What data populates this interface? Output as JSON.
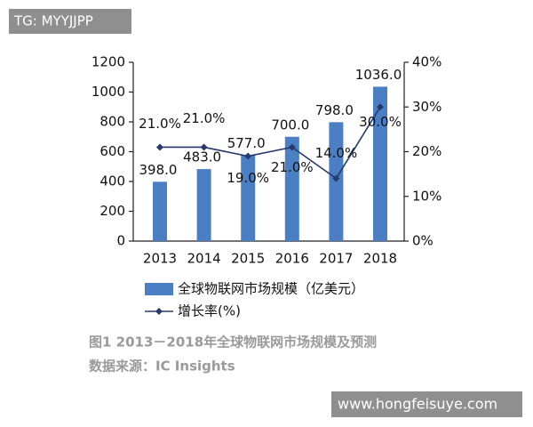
{
  "watermarks": [
    "TG: MYYJJPP",
    "www.hongfeisuye.com"
  ],
  "chart_data": {
    "type": "bar",
    "categories": [
      "2013",
      "2014",
      "2015",
      "2016",
      "2017",
      "2018"
    ],
    "series": [
      {
        "name": "全球物联网市场规模（亿美元）",
        "type": "bar",
        "color": "#4a7fc4",
        "values": [
          398,
          483,
          577,
          700,
          798,
          1036
        ],
        "value_labels": [
          "398.0",
          "483.0",
          "577.0",
          "700.0",
          "798.0",
          "1036.0"
        ]
      },
      {
        "name": "增长率(%)",
        "type": "line",
        "axis": "y2",
        "color": "#263a6e",
        "values": [
          21,
          21,
          19,
          21,
          14,
          30
        ],
        "value_labels": [
          "21.0%",
          "21.0%",
          "19.0%",
          "21.0%",
          "14.0%",
          "30.0%"
        ]
      }
    ],
    "ylim": [
      0,
      1200
    ],
    "yticks": [
      0,
      200,
      400,
      600,
      800,
      1000,
      1200
    ],
    "y2lim": [
      0,
      40
    ],
    "y2ticks": [
      {
        "value": 0,
        "label": "0%"
      },
      {
        "value": 10,
        "label": "10%"
      },
      {
        "value": 20,
        "label": "20%"
      },
      {
        "value": 30,
        "label": "30%"
      },
      {
        "value": 40,
        "label": "40%"
      }
    ],
    "caption": [
      "图1  2013－2018年全球物联网市场规模及预测",
      "数据来源：IC Insights"
    ]
  }
}
